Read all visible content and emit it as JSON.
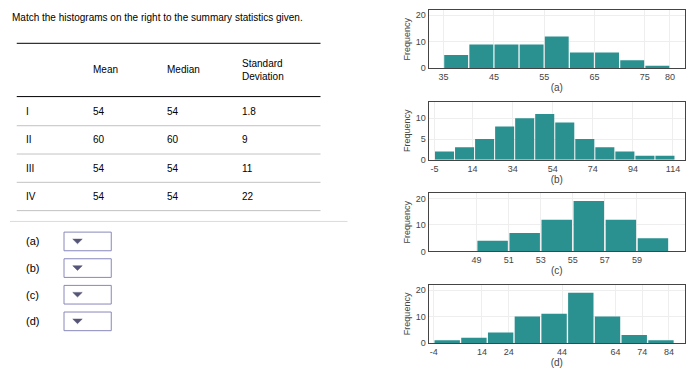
{
  "chart_data": [
    {
      "type": "table",
      "title": "Match the histograms on the right to the summary statistics given.",
      "headers": [
        "",
        "Mean",
        "Median",
        "Standard\nDeviation"
      ],
      "rows": [
        [
          "I",
          "54",
          "54",
          "1.8"
        ],
        [
          "II",
          "60",
          "60",
          "9"
        ],
        [
          "III",
          "54",
          "54",
          "11"
        ],
        [
          "IV",
          "54",
          "54",
          "22"
        ]
      ],
      "annotations": [
        "(a)",
        "(b)",
        "(c)",
        "(d)"
      ]
    },
    {
      "type": "histogram",
      "xlabel": "(a)",
      "ylabel": "Frequency",
      "color": "#2a9090",
      "grid": true,
      "bins": [
        35,
        40,
        45,
        50,
        55,
        60,
        65,
        70,
        75,
        80
      ],
      "values": [
        5,
        9,
        9,
        9,
        12,
        6,
        6,
        3,
        1
      ],
      "xlim": [
        32,
        83
      ],
      "xticks": [
        35,
        45,
        55,
        65,
        75,
        80
      ],
      "ylim": [
        0,
        22
      ],
      "yticks": [
        0,
        10,
        20
      ]
    },
    {
      "type": "histogram",
      "xlabel": "(b)",
      "ylabel": "Frequency",
      "color": "#2a9090",
      "grid": true,
      "bins": [
        -5,
        5,
        15,
        25,
        35,
        45,
        55,
        65,
        75,
        85,
        95,
        105,
        115
      ],
      "values": [
        2,
        3,
        5,
        8,
        10,
        11,
        9,
        5,
        3,
        2,
        1,
        1
      ],
      "xlim": [
        -8,
        120
      ],
      "xticks": [
        -5,
        14,
        34,
        54,
        74,
        94,
        114
      ],
      "ylim": [
        0,
        14
      ],
      "yticks": [
        0,
        5,
        10
      ]
    },
    {
      "type": "histogram",
      "xlabel": "(c)",
      "ylabel": "Frequency",
      "color": "#2a9090",
      "grid": true,
      "bins": [
        49,
        51,
        53,
        55,
        57,
        59,
        61
      ],
      "values": [
        4,
        7,
        12,
        19,
        12,
        5
      ],
      "xlim": [
        46,
        62
      ],
      "xticks": [
        49,
        51,
        53,
        55,
        57,
        59
      ],
      "ylim": [
        0,
        22
      ],
      "yticks": [
        0,
        10,
        20
      ]
    },
    {
      "type": "histogram",
      "xlabel": "(d)",
      "ylabel": "Frequency",
      "color": "#2a9090",
      "grid": true,
      "bins": [
        -4,
        6,
        16,
        26,
        36,
        46,
        56,
        66,
        76,
        86
      ],
      "values": [
        1,
        2,
        4,
        10,
        11,
        19,
        10,
        3,
        1
      ],
      "xlim": [
        -6,
        90
      ],
      "xticks": [
        -4,
        14,
        24,
        44,
        64,
        74,
        84
      ],
      "ylim": [
        0,
        22
      ],
      "yticks": [
        0,
        10,
        20
      ]
    }
  ]
}
